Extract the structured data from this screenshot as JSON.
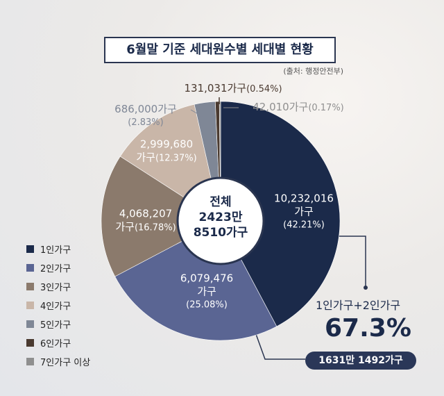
{
  "chart_data": {
    "type": "pie",
    "title": "6월말 기준 세대원수별 세대별 현황",
    "source": "(출처: 행정안전부)",
    "center_label": "전체\n2423만\n8510가구",
    "categories": [
      "1인가구",
      "2인가구",
      "3인가구",
      "4인가구",
      "5인가구",
      "6인가구",
      "7인가구 이상"
    ],
    "values": [
      42.21,
      25.08,
      16.78,
      12.37,
      2.83,
      0.54,
      0.17
    ],
    "value_labels": [
      "(42.21%)",
      "(25.08%)",
      "(16.78%)",
      "(12.37%)",
      "(2.83%)",
      "(0.54%)",
      "(0.17%)"
    ],
    "household_labels": [
      "10,232,016\n가구",
      "6,079,476\n가구",
      "4,068,207\n가구",
      "2,999,680\n가구",
      "686,000가구",
      "131,031가구",
      "42,010가구"
    ],
    "colors": [
      "#1b2a4a",
      "#5a6593",
      "#8b7a6c",
      "#c9b6a8",
      "#7f8796",
      "#4a3a30",
      "#8f8f8f"
    ],
    "annotation": {
      "text": "1인가구+2인가구",
      "percent": "67.3%",
      "total": "1631만 1492가구"
    }
  }
}
